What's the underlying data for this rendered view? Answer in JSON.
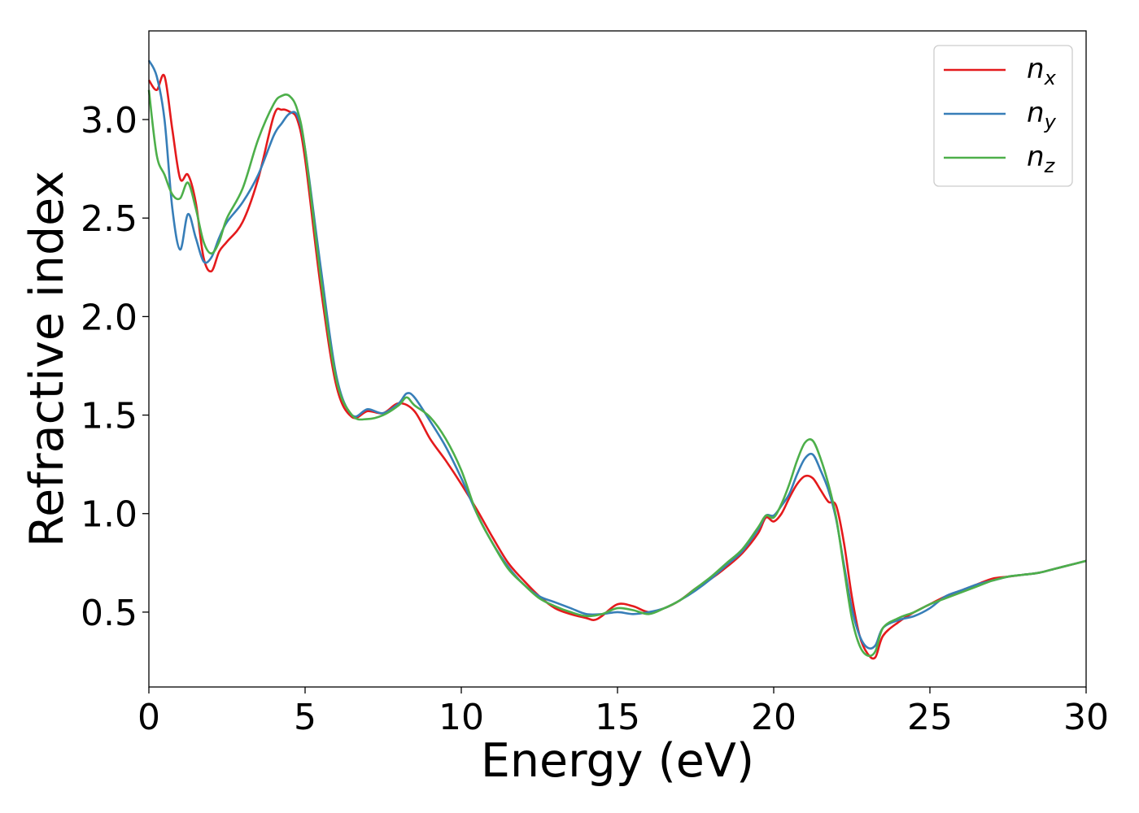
{
  "chart_data": {
    "type": "line",
    "xlabel": "Energy (eV)",
    "ylabel": "Refractive index",
    "xlim": [
      0,
      30
    ],
    "ylim": [
      0.12,
      3.45
    ],
    "grid": false,
    "legend_position": "top-right",
    "x_ticks": [
      0,
      5,
      10,
      15,
      20,
      25,
      30
    ],
    "x_tick_labels": [
      "0",
      "5",
      "10",
      "15",
      "20",
      "25",
      "30"
    ],
    "y_ticks": [
      0.5,
      1.0,
      1.5,
      2.0,
      2.5,
      3.0
    ],
    "y_tick_labels": [
      "0.5",
      "1.0",
      "1.5",
      "2.0",
      "2.5",
      "3.0"
    ],
    "series": [
      {
        "name": "n_x",
        "label_main": "n",
        "label_sub": "x",
        "color": "#e41a1c",
        "x": [
          0,
          0.25,
          0.5,
          0.75,
          1.0,
          1.25,
          1.5,
          1.75,
          2.0,
          2.25,
          2.5,
          3.0,
          3.5,
          4.0,
          4.25,
          4.5,
          4.75,
          5.0,
          5.5,
          6.0,
          6.5,
          7.0,
          7.5,
          8.0,
          8.5,
          9.0,
          9.5,
          10.0,
          10.5,
          11.0,
          11.5,
          12.0,
          12.5,
          13.0,
          13.5,
          14.0,
          14.25,
          14.5,
          15.0,
          15.5,
          16.0,
          16.5,
          17.0,
          17.5,
          18.0,
          18.5,
          19.0,
          19.5,
          19.75,
          20.0,
          20.25,
          20.5,
          20.75,
          21.0,
          21.25,
          21.5,
          21.75,
          22.0,
          22.25,
          22.5,
          22.75,
          23.0,
          23.25,
          23.5,
          24.0,
          24.5,
          25.0,
          25.5,
          26.0,
          26.5,
          27.0,
          27.5,
          28.0,
          28.5,
          29.0,
          29.5,
          30.0
        ],
        "y": [
          3.2,
          3.15,
          3.22,
          2.95,
          2.7,
          2.72,
          2.58,
          2.3,
          2.23,
          2.33,
          2.38,
          2.48,
          2.7,
          3.02,
          3.05,
          3.04,
          3.0,
          2.8,
          2.15,
          1.65,
          1.49,
          1.52,
          1.51,
          1.56,
          1.52,
          1.38,
          1.27,
          1.15,
          1.02,
          0.88,
          0.75,
          0.66,
          0.58,
          0.52,
          0.49,
          0.47,
          0.46,
          0.48,
          0.54,
          0.53,
          0.5,
          0.52,
          0.56,
          0.62,
          0.67,
          0.73,
          0.8,
          0.9,
          0.98,
          0.96,
          1.0,
          1.08,
          1.15,
          1.19,
          1.18,
          1.12,
          1.06,
          1.04,
          0.85,
          0.58,
          0.38,
          0.29,
          0.27,
          0.38,
          0.45,
          0.5,
          0.54,
          0.58,
          0.61,
          0.64,
          0.67,
          0.68,
          0.69,
          0.7,
          0.72,
          0.74,
          0.76
        ]
      },
      {
        "name": "n_y",
        "label_main": "n",
        "label_sub": "y",
        "color": "#377eb8",
        "x": [
          0,
          0.25,
          0.5,
          0.75,
          1.0,
          1.25,
          1.5,
          1.75,
          2.0,
          2.25,
          2.5,
          3.0,
          3.5,
          4.0,
          4.25,
          4.5,
          4.75,
          5.0,
          5.5,
          6.0,
          6.5,
          7.0,
          7.5,
          8.0,
          8.25,
          8.5,
          9.0,
          9.5,
          10.0,
          10.5,
          11.0,
          11.5,
          12.0,
          12.5,
          13.0,
          13.5,
          14.0,
          14.5,
          15.0,
          15.5,
          16.0,
          16.5,
          17.0,
          17.5,
          18.0,
          18.5,
          19.0,
          19.5,
          19.75,
          20.0,
          20.25,
          20.5,
          20.75,
          21.0,
          21.25,
          21.5,
          21.75,
          22.0,
          22.25,
          22.5,
          22.75,
          23.0,
          23.25,
          23.5,
          24.0,
          24.5,
          25.0,
          25.5,
          26.0,
          26.5,
          27.0,
          27.5,
          28.0,
          28.5,
          29.0,
          29.5,
          30.0
        ],
        "y": [
          3.3,
          3.22,
          3.0,
          2.55,
          2.34,
          2.52,
          2.4,
          2.28,
          2.3,
          2.4,
          2.48,
          2.58,
          2.72,
          2.92,
          2.98,
          3.03,
          3.02,
          2.85,
          2.25,
          1.7,
          1.5,
          1.53,
          1.51,
          1.56,
          1.61,
          1.59,
          1.47,
          1.34,
          1.18,
          1.0,
          0.85,
          0.73,
          0.64,
          0.58,
          0.55,
          0.52,
          0.49,
          0.49,
          0.5,
          0.49,
          0.5,
          0.52,
          0.56,
          0.61,
          0.67,
          0.74,
          0.81,
          0.92,
          0.99,
          0.99,
          1.04,
          1.1,
          1.2,
          1.28,
          1.3,
          1.22,
          1.12,
          0.97,
          0.74,
          0.52,
          0.38,
          0.32,
          0.33,
          0.42,
          0.46,
          0.48,
          0.52,
          0.58,
          0.61,
          0.64,
          0.66,
          0.68,
          0.69,
          0.7,
          0.72,
          0.74,
          0.76
        ]
      },
      {
        "name": "n_z",
        "label_main": "n",
        "label_sub": "z",
        "color": "#4daf4a",
        "x": [
          0,
          0.25,
          0.5,
          0.75,
          1.0,
          1.25,
          1.5,
          1.75,
          2.0,
          2.25,
          2.5,
          3.0,
          3.5,
          4.0,
          4.25,
          4.5,
          4.75,
          5.0,
          5.5,
          6.0,
          6.5,
          7.0,
          7.5,
          8.0,
          8.25,
          8.5,
          9.0,
          9.5,
          10.0,
          10.5,
          11.0,
          11.5,
          12.0,
          12.5,
          13.0,
          13.5,
          14.0,
          14.5,
          15.0,
          15.5,
          16.0,
          16.5,
          17.0,
          17.5,
          18.0,
          18.5,
          19.0,
          19.5,
          19.75,
          20.0,
          20.25,
          20.5,
          20.75,
          21.0,
          21.25,
          21.5,
          21.75,
          22.0,
          22.25,
          22.5,
          22.75,
          23.0,
          23.25,
          23.5,
          24.0,
          24.5,
          25.0,
          25.5,
          26.0,
          26.5,
          27.0,
          27.5,
          28.0,
          28.5,
          29.0,
          29.5,
          30.0
        ],
        "y": [
          3.15,
          2.82,
          2.72,
          2.62,
          2.6,
          2.68,
          2.55,
          2.38,
          2.32,
          2.38,
          2.5,
          2.65,
          2.9,
          3.08,
          3.12,
          3.12,
          3.05,
          2.85,
          2.2,
          1.68,
          1.5,
          1.48,
          1.5,
          1.55,
          1.59,
          1.55,
          1.49,
          1.38,
          1.22,
          1.0,
          0.85,
          0.72,
          0.64,
          0.57,
          0.53,
          0.5,
          0.48,
          0.49,
          0.52,
          0.51,
          0.49,
          0.52,
          0.56,
          0.62,
          0.68,
          0.75,
          0.82,
          0.93,
          0.99,
          0.98,
          1.05,
          1.15,
          1.27,
          1.36,
          1.37,
          1.28,
          1.15,
          0.98,
          0.72,
          0.47,
          0.33,
          0.28,
          0.3,
          0.42,
          0.47,
          0.5,
          0.54,
          0.57,
          0.6,
          0.63,
          0.66,
          0.68,
          0.69,
          0.7,
          0.72,
          0.74,
          0.76
        ]
      }
    ]
  }
}
